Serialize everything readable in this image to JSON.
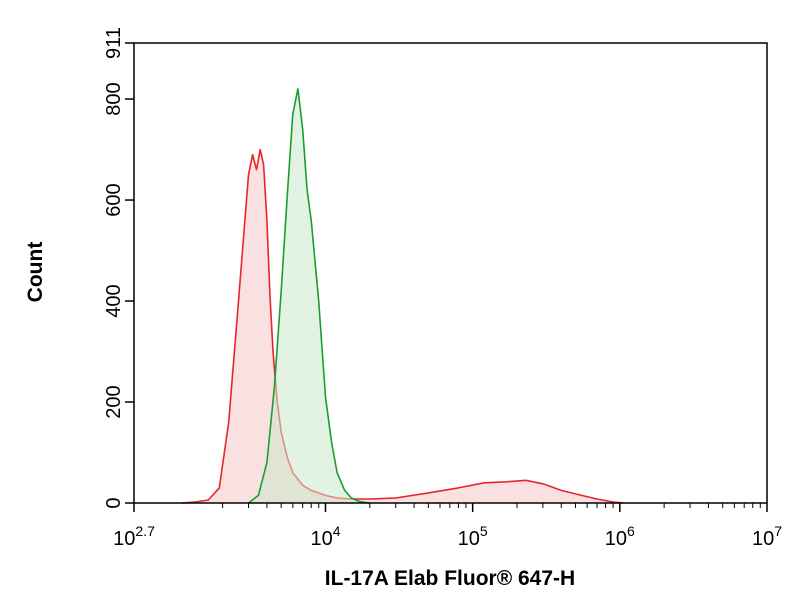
{
  "chart_data": {
    "type": "area",
    "title": "",
    "xlabel": "IL-17A Elab Fluor® 647-H",
    "ylabel": "Count",
    "x_scale": "log10",
    "xlim": [
      500,
      10000000
    ],
    "ylim": [
      0,
      911
    ],
    "x_ticks": [
      {
        "base": "10",
        "exp": "2.7",
        "value": 500
      },
      {
        "base": "10",
        "exp": "4",
        "value": 10000
      },
      {
        "base": "10",
        "exp": "5",
        "value": 100000
      },
      {
        "base": "10",
        "exp": "6",
        "value": 1000000
      },
      {
        "base": "10",
        "exp": "7",
        "value": 10000000
      }
    ],
    "y_ticks": [
      "0",
      "200",
      "400",
      "600",
      "800",
      "911"
    ],
    "grid": false,
    "legend": "none",
    "series": [
      {
        "color": "#e8262a",
        "fill": "#f3c9c6",
        "x": [
          1050,
          1300,
          1600,
          1900,
          2200,
          2500,
          2800,
          3000,
          3200,
          3400,
          3600,
          3800,
          4000,
          4200,
          4400,
          4700,
          5000,
          5500,
          6000,
          7000,
          8000,
          10000,
          12000,
          15000,
          20000,
          30000,
          50000,
          80000,
          120000,
          170000,
          230000,
          300000,
          400000,
          550000,
          700000,
          900000,
          1050000
        ],
        "y": [
          0,
          2,
          6,
          30,
          160,
          360,
          540,
          650,
          690,
          660,
          700,
          670,
          560,
          410,
          300,
          200,
          140,
          90,
          60,
          35,
          25,
          15,
          10,
          8,
          8,
          10,
          20,
          30,
          40,
          42,
          45,
          38,
          25,
          15,
          8,
          2,
          0
        ]
      },
      {
        "color": "#1a9e2f",
        "fill": "#cbe8cc",
        "x": [
          3000,
          3500,
          4000,
          4500,
          5000,
          5500,
          6000,
          6500,
          7000,
          7500,
          8000,
          9000,
          10000,
          11000,
          12000,
          13500,
          15000,
          17000,
          20000
        ],
        "y": [
          0,
          15,
          80,
          230,
          420,
          610,
          770,
          820,
          740,
          620,
          560,
          400,
          210,
          120,
          60,
          25,
          10,
          3,
          0
        ]
      }
    ]
  }
}
